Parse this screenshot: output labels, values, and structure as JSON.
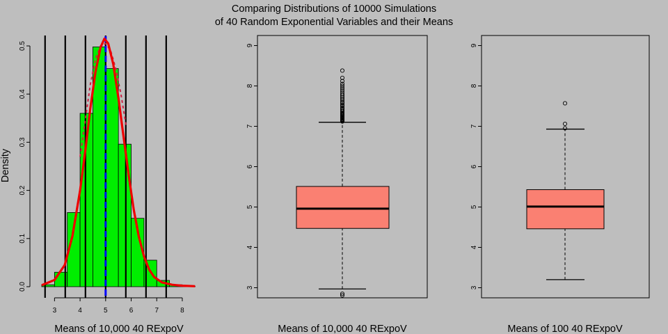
{
  "figure": {
    "title_line1": "Comparing Distributions of 10000 Simulations",
    "title_line2": "of 40 Random Exponential Variables and their Means"
  },
  "colors": {
    "background": "#bebebe",
    "histogram_fill": "#00ee00",
    "density_curve": "#ee0000",
    "mean_line": "#0000ff",
    "box_fill": "#fa8072"
  },
  "chart_data": [
    {
      "type": "histogram",
      "xlabel": "Means of 10,000 40 RExpoV",
      "ylabel": "Density",
      "xlim": [
        2.5,
        8.6
      ],
      "ylim": [
        0,
        0.52
      ],
      "x_ticks": [
        3,
        4,
        5,
        6,
        7,
        8
      ],
      "y_ticks": [
        0.0,
        0.1,
        0.2,
        0.3,
        0.4,
        0.5
      ],
      "y_tick_labels": [
        "0.0",
        "0.1",
        "0.2",
        "0.3",
        "0.4",
        "0.5"
      ],
      "bin_width": 0.5,
      "bins": [
        {
          "x0": 2.5,
          "x1": 3.0,
          "density": 0.004
        },
        {
          "x0": 3.0,
          "x1": 3.5,
          "density": 0.03
        },
        {
          "x0": 3.5,
          "x1": 4.0,
          "density": 0.154
        },
        {
          "x0": 4.0,
          "x1": 4.5,
          "density": 0.36
        },
        {
          "x0": 4.5,
          "x1": 5.0,
          "density": 0.498
        },
        {
          "x0": 5.0,
          "x1": 5.5,
          "density": 0.453
        },
        {
          "x0": 5.5,
          "x1": 6.0,
          "density": 0.296
        },
        {
          "x0": 6.0,
          "x1": 6.5,
          "density": 0.142
        },
        {
          "x0": 6.5,
          "x1": 7.0,
          "density": 0.055
        },
        {
          "x0": 7.0,
          "x1": 7.5,
          "density": 0.013
        },
        {
          "x0": 7.5,
          "x1": 8.0,
          "density": 0.004
        },
        {
          "x0": 8.0,
          "x1": 8.5,
          "density": 0.001
        }
      ],
      "density_curve": [
        [
          2.5,
          0.003
        ],
        [
          3.0,
          0.014
        ],
        [
          3.4,
          0.045
        ],
        [
          3.7,
          0.105
        ],
        [
          4.0,
          0.2
        ],
        [
          4.2,
          0.28
        ],
        [
          4.4,
          0.37
        ],
        [
          4.6,
          0.445
        ],
        [
          4.8,
          0.497
        ],
        [
          4.95,
          0.515
        ],
        [
          5.1,
          0.505
        ],
        [
          5.3,
          0.462
        ],
        [
          5.5,
          0.392
        ],
        [
          5.7,
          0.312
        ],
        [
          5.9,
          0.232
        ],
        [
          6.1,
          0.16
        ],
        [
          6.3,
          0.104
        ],
        [
          6.5,
          0.063
        ],
        [
          6.7,
          0.036
        ],
        [
          6.9,
          0.02
        ],
        [
          7.2,
          0.009
        ],
        [
          7.6,
          0.004
        ],
        [
          8.0,
          0.002
        ],
        [
          8.5,
          0.001
        ]
      ],
      "normal_curve": [
        [
          4.0,
          0.27
        ],
        [
          4.2,
          0.345
        ],
        [
          4.4,
          0.42
        ],
        [
          4.6,
          0.472
        ],
        [
          4.8,
          0.5
        ],
        [
          5.0,
          0.505
        ],
        [
          5.2,
          0.49
        ],
        [
          5.4,
          0.452
        ],
        [
          5.6,
          0.4
        ],
        [
          5.8,
          0.335
        ]
      ],
      "mean_line_x": 5.0,
      "vertical_lines_x": [
        2.63,
        3.42,
        4.21,
        5.0,
        5.79,
        6.58,
        7.37
      ]
    },
    {
      "type": "boxplot",
      "xlabel": "Means of 10,000 40 RExpoV",
      "ylim": [
        2.75,
        9.25
      ],
      "y_ticks": [
        3,
        4,
        5,
        6,
        7,
        8,
        9
      ],
      "stats": {
        "whisker_low": 2.97,
        "q1": 4.47,
        "median": 4.96,
        "q3": 5.51,
        "whisker_high": 7.1
      },
      "outliers": [
        2.81,
        2.85,
        7.12,
        7.13,
        7.14,
        7.15,
        7.16,
        7.17,
        7.19,
        7.2,
        7.22,
        7.24,
        7.26,
        7.28,
        7.3,
        7.32,
        7.34,
        7.37,
        7.4,
        7.43,
        7.46,
        7.5,
        7.53,
        7.57,
        7.6,
        7.64,
        7.68,
        7.72,
        7.76,
        7.8,
        7.85,
        7.9,
        7.95,
        8.0,
        8.05,
        8.12,
        8.2,
        8.38
      ]
    },
    {
      "type": "boxplot",
      "xlabel": "Means of 100 40 RExpoV",
      "ylim": [
        2.75,
        9.25
      ],
      "y_ticks": [
        3,
        4,
        5,
        6,
        7,
        8,
        9
      ],
      "stats": {
        "whisker_low": 3.2,
        "q1": 4.46,
        "median": 5.01,
        "q3": 5.43,
        "whisker_high": 6.93
      },
      "outliers": [
        6.95,
        7.06,
        7.57
      ]
    }
  ]
}
